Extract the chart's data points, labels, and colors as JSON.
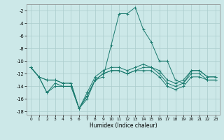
{
  "background_color": "#cce8e8",
  "grid_color": "#aacccc",
  "line_color": "#1a7a6e",
  "xlabel": "Humidex (Indice chaleur)",
  "xlim": [
    -0.5,
    23.5
  ],
  "ylim": [
    -18.5,
    -1.0
  ],
  "yticks": [
    -18,
    -16,
    -14,
    -12,
    -10,
    -8,
    -6,
    -4,
    -2
  ],
  "xticks": [
    0,
    1,
    2,
    3,
    4,
    5,
    6,
    7,
    8,
    9,
    10,
    11,
    12,
    13,
    14,
    15,
    16,
    17,
    18,
    19,
    20,
    21,
    22,
    23
  ],
  "series": [
    {
      "x": [
        0,
        1,
        2,
        3,
        4,
        5,
        6,
        7,
        8,
        9,
        10,
        11,
        12,
        13,
        14,
        15,
        16,
        17,
        18,
        19,
        20,
        21,
        22,
        23
      ],
      "y": [
        -11,
        -12.5,
        -13,
        -13,
        -13.5,
        -13.5,
        -17.5,
        -15,
        -12.5,
        -11.5,
        -11,
        -11,
        -11.5,
        -11,
        -10.5,
        -11,
        -11.5,
        -13,
        -13.5,
        -13,
        -11.5,
        -11.5,
        -12.5,
        -12.5
      ]
    },
    {
      "x": [
        0,
        1,
        2,
        3,
        4,
        5,
        6,
        7,
        8,
        9,
        10,
        11,
        12,
        13,
        14,
        15,
        16,
        17,
        18,
        19,
        20,
        21,
        22,
        23
      ],
      "y": [
        -11,
        -12.5,
        -13,
        -13,
        -13.5,
        -13.5,
        -17.5,
        -15.5,
        -13,
        -12,
        -11.5,
        -11.5,
        -12,
        -11.5,
        -11,
        -11,
        -12,
        -13.5,
        -14,
        -13.5,
        -12,
        -12,
        -13,
        -13
      ]
    },
    {
      "x": [
        0,
        1,
        2,
        3,
        4,
        5,
        6,
        7,
        8,
        9,
        10,
        11,
        12,
        13,
        14,
        15,
        16,
        17,
        18,
        19,
        20,
        21,
        22,
        23
      ],
      "y": [
        -11,
        -12.5,
        -15,
        -13.5,
        -14,
        -14,
        -17.5,
        -15.5,
        -13,
        -12,
        -11.5,
        -11.5,
        -12,
        -11.5,
        -11.5,
        -11.5,
        -12.5,
        -14,
        -14.5,
        -14,
        -12.5,
        -12.5,
        -13,
        -13
      ]
    },
    {
      "x": [
        0,
        1,
        2,
        3,
        4,
        5,
        6,
        7,
        8,
        9,
        10,
        11,
        12,
        13,
        14,
        15,
        16,
        17,
        18,
        19,
        20,
        21,
        22,
        23
      ],
      "y": [
        -11,
        -12.5,
        -15,
        -14,
        -14,
        -14,
        -17.5,
        -16,
        -13,
        -12.5,
        -7.5,
        -2.5,
        -2.5,
        -1.5,
        -5,
        -7,
        -10,
        -10,
        -13,
        -13.5,
        -11.5,
        -11.5,
        -12.5,
        -12.5
      ]
    }
  ]
}
